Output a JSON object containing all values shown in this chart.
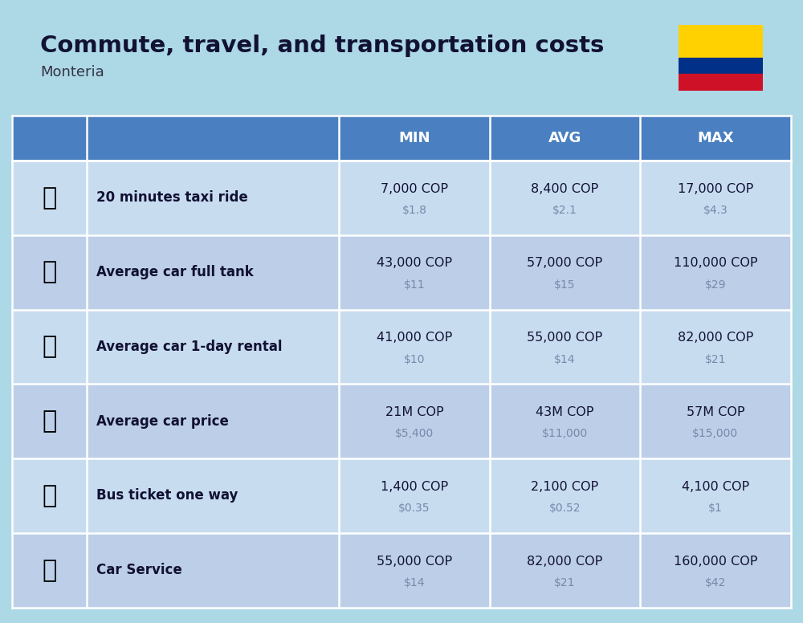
{
  "title": "Commute, travel, and transportation costs",
  "subtitle": "Monteria",
  "background_color": "#ADD8E6",
  "header_bg_color": "#4A7FC1",
  "header_text_color": "#FFFFFF",
  "cell_bg_color_a": "#C8DCF0",
  "cell_bg_color_b": "#BDCFE8",
  "col_headers": [
    "MIN",
    "AVG",
    "MAX"
  ],
  "rows": [
    {
      "label": "20 minutes taxi ride",
      "min_cop": "7,000 COP",
      "min_usd": "$1.8",
      "avg_cop": "8,400 COP",
      "avg_usd": "$2.1",
      "max_cop": "17,000 COP",
      "max_usd": "$4.3"
    },
    {
      "label": "Average car full tank",
      "min_cop": "43,000 COP",
      "min_usd": "$11",
      "avg_cop": "57,000 COP",
      "avg_usd": "$15",
      "max_cop": "110,000 COP",
      "max_usd": "$29"
    },
    {
      "label": "Average car 1-day rental",
      "min_cop": "41,000 COP",
      "min_usd": "$10",
      "avg_cop": "55,000 COP",
      "avg_usd": "$14",
      "max_cop": "82,000 COP",
      "max_usd": "$21"
    },
    {
      "label": "Average car price",
      "min_cop": "21M COP",
      "min_usd": "$5,400",
      "avg_cop": "43M COP",
      "avg_usd": "$11,000",
      "max_cop": "57M COP",
      "max_usd": "$15,000"
    },
    {
      "label": "Bus ticket one way",
      "min_cop": "1,400 COP",
      "min_usd": "$0.35",
      "avg_cop": "2,100 COP",
      "avg_usd": "$0.52",
      "max_cop": "4,100 COP",
      "max_usd": "$1"
    },
    {
      "label": "Car Service",
      "min_cop": "55,000 COP",
      "min_usd": "$14",
      "avg_cop": "82,000 COP",
      "avg_usd": "$21",
      "max_cop": "160,000 COP",
      "max_usd": "$42"
    }
  ],
  "flag_colors": [
    "#FFD100",
    "#003087",
    "#CE1126"
  ],
  "cop_color": "#111133",
  "usd_color": "#7788AA"
}
